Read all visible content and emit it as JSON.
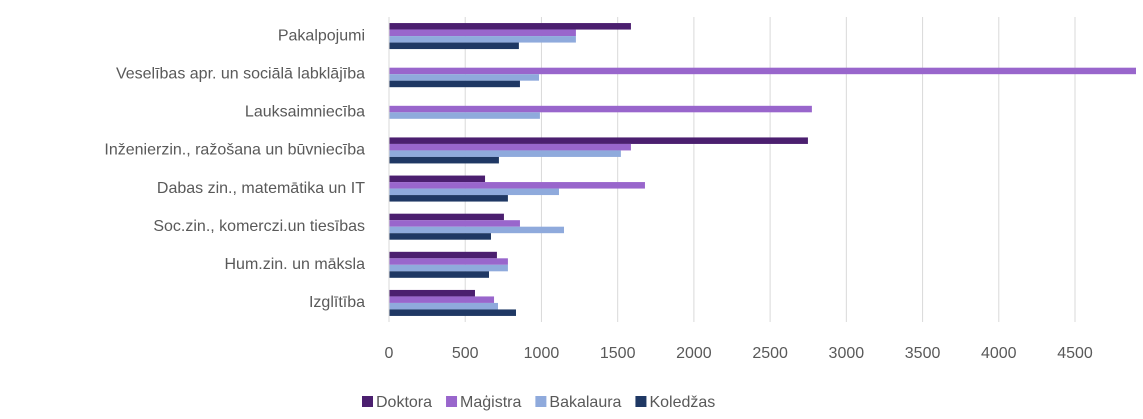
{
  "chart_data": {
    "type": "bar",
    "orientation": "horizontal",
    "categories": [
      "Pakalpojumi",
      "Veselības apr. un sociālā labklājība",
      "Lauksaimniecība",
      "Inženierzin., ražošana un būvniecība",
      "Dabas zin., matemātika un IT",
      "Soc.zin., komerczi.un tiesības",
      "Hum.zin. un māksla",
      "Izglītība"
    ],
    "series": [
      {
        "name": "Doktora",
        "color": "#4b1f6f",
        "values": [
          1587,
          null,
          null,
          2748,
          630,
          754,
          708,
          564
        ]
      },
      {
        "name": "Maģistra",
        "color": "#9966cc",
        "values": [
          1226,
          4900,
          2774,
          1587,
          1679,
          859,
          780,
          689
        ]
      },
      {
        "name": "Bakalaura",
        "color": "#8faadc",
        "values": [
          1226,
          984,
          990,
          1521,
          1115,
          1148,
          780,
          715
        ]
      },
      {
        "name": "Koledžas",
        "color": "#1f3864",
        "values": [
          852,
          859,
          null,
          721,
          780,
          669,
          656,
          833
        ]
      }
    ],
    "xlim": [
      0,
      4900
    ],
    "xticks": [
      0,
      500,
      1000,
      1500,
      2000,
      2500,
      3000,
      3500,
      4000,
      4500
    ],
    "grid": true,
    "legend": "bottom"
  }
}
